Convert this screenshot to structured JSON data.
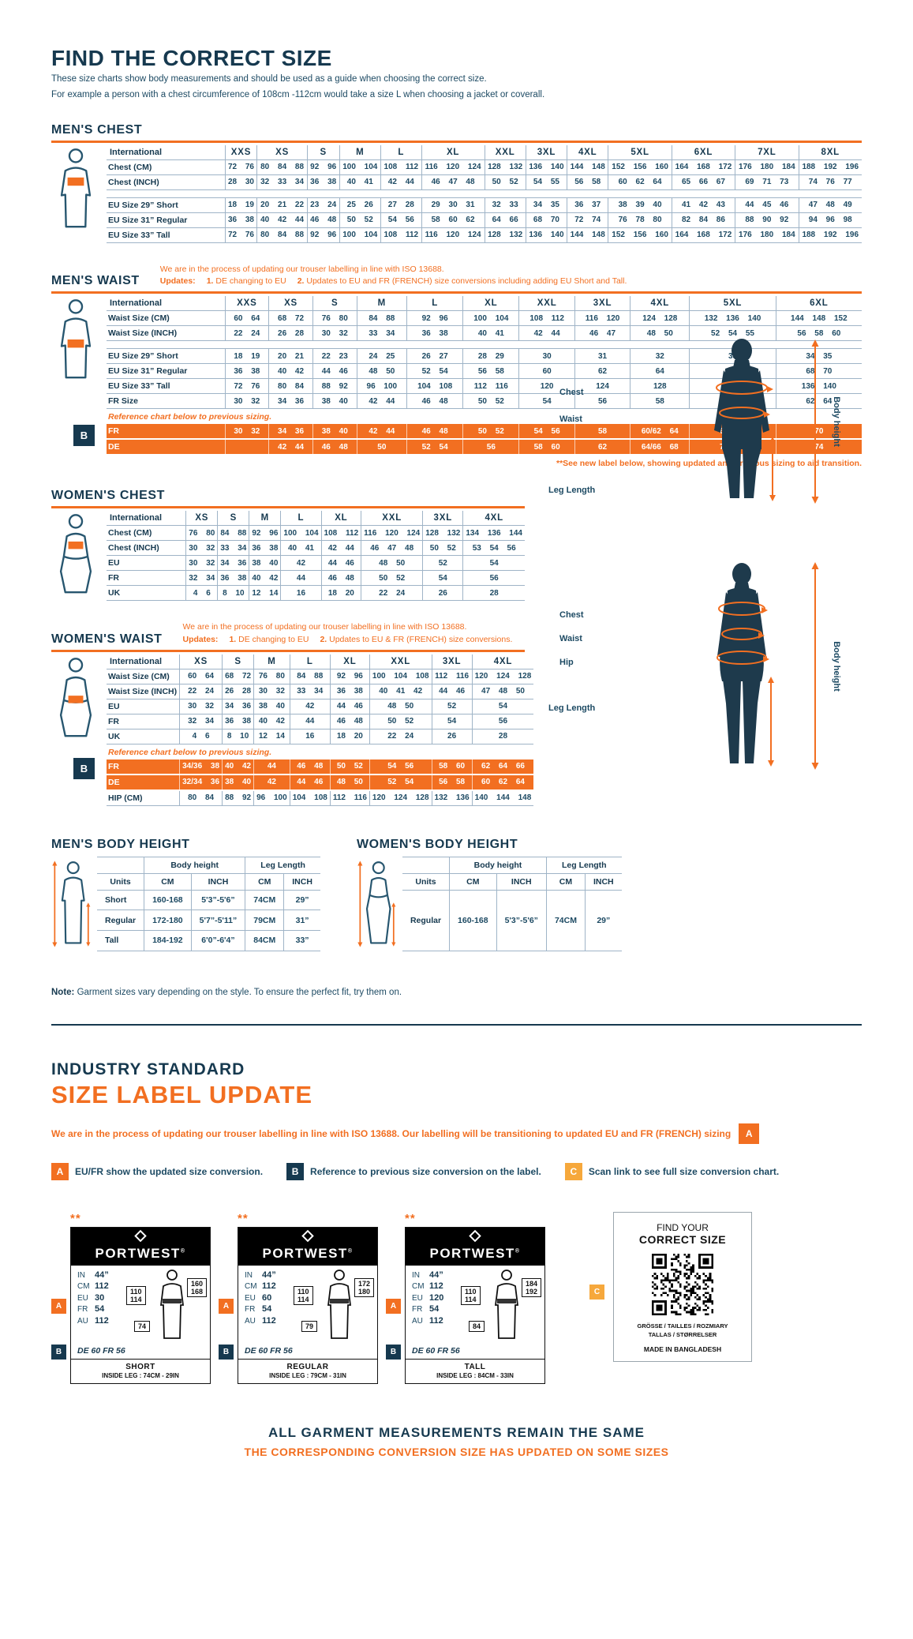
{
  "header": {
    "title": "FIND THE CORRECT SIZE",
    "sub1": "These size charts show body measurements and should be used as a guide when choosing the correct size.",
    "sub2": "For example a person with a chest circumference of 108cm -112cm would take a size L when choosing a jacket or coverall."
  },
  "colors": {
    "navy": "#16394F",
    "ink": "#1D4A63",
    "orange": "#F26F21",
    "amber": "#F6A83C",
    "table_line": "#9FB4C7"
  },
  "notes": {
    "updates_label": "Updates:",
    "mens_waist": {
      "line1": "We are in the process of updating our trouser labelling in line with ISO 13688.",
      "n1": "1.",
      "u1": "DE changing to EU",
      "n2": "2.",
      "u2": "Updates to EU and FR (FRENCH) size conversions including adding EU Short and Tall.",
      "footnote": "**See new label below, showing updated and previous sizing to aid transition."
    },
    "womens_waist": {
      "line1": "We are in the process of updating our trouser labelling in line with ISO 13688.",
      "n1": "1.",
      "u1": "DE changing to EU",
      "n2": "2.",
      "u2": "Updates to EU & FR (FRENCH) size conversions."
    },
    "garment_note_label": "Note:",
    "garment_note": " Garment sizes vary depending on the style. To ensure the perfect fit, try them on."
  },
  "tables": {
    "mens_chest": {
      "title": "MEN'S CHEST",
      "header": [
        "International",
        "XXS",
        "XS",
        "S",
        "M",
        "L",
        "XL",
        "XXL",
        "3XL",
        "4XL",
        "5XL",
        "6XL",
        "7XL",
        "8XL"
      ],
      "rows": [
        {
          "type": "data",
          "label": "Chest (CM)",
          "cells": [
            "72 76",
            "80 84 88",
            "92 96",
            "100 104",
            "108 112",
            "116 120 124",
            "128 132",
            "136 140",
            "144 148",
            "152 156 160",
            "164 168 172",
            "176 180 184",
            "188 192 196"
          ]
        },
        {
          "type": "data",
          "label": "Chest (INCH)",
          "cells": [
            "28 30",
            "32 33 34",
            "36 38",
            "40 41",
            "42 44",
            "46 47 48",
            "50 52",
            "54 55",
            "56 58",
            "60 62 64",
            "65 66 67",
            "69 71 73",
            "74 76 77"
          ]
        },
        {
          "type": "gap"
        },
        {
          "type": "data",
          "label": "EU Size 29” Short",
          "cells": [
            "18 19",
            "20 21 22",
            "23 24",
            "25 26",
            "27 28",
            "29 30 31",
            "32 33",
            "34 35",
            "36 37",
            "38 39 40",
            "41 42 43",
            "44 45 46",
            "47 48 49"
          ]
        },
        {
          "type": "data",
          "label": "EU Size 31” Regular",
          "cells": [
            "36 38",
            "40 42 44",
            "46 48",
            "50 52",
            "54 56",
            "58 60 62",
            "64 66",
            "68 70",
            "72 74",
            "76 78 80",
            "82 84 86",
            "88 90 92",
            "94 96 98"
          ]
        },
        {
          "type": "data",
          "label": "EU Size 33” Tall",
          "cells": [
            "72 76",
            "80 84 88",
            "92 96",
            "100 104",
            "108 112",
            "116 120 124",
            "128 132",
            "136 140",
            "144 148",
            "152 156 160",
            "164 168 172",
            "176 180 184",
            "188 192 196"
          ]
        }
      ]
    },
    "mens_waist": {
      "title": "MEN'S WAIST",
      "header": [
        "International",
        "XXS",
        "XS",
        "S",
        "M",
        "L",
        "XL",
        "XXL",
        "3XL",
        "4XL",
        "5XL",
        "6XL"
      ],
      "rows": [
        {
          "type": "data",
          "label": "Waist Size (CM)",
          "cells": [
            "60 64",
            "68 72",
            "76 80",
            "84 88",
            "92 96",
            "100 104",
            "108 112",
            "116 120",
            "124 128",
            "132 136 140",
            "144 148 152"
          ]
        },
        {
          "type": "data",
          "label": "Waist Size (INCH)",
          "cells": [
            "22 24",
            "26 28",
            "30 32",
            "33 34",
            "36 38",
            "40 41",
            "42 44",
            "46 47",
            "48 50",
            "52 54 55",
            "56 58 60"
          ]
        },
        {
          "type": "gap"
        },
        {
          "type": "data",
          "label": "EU Size 29” Short",
          "cells": [
            "18 19",
            "20 21",
            "22 23",
            "24 25",
            "26 27",
            "28 29",
            "30",
            "31",
            "32",
            "33",
            "34 35"
          ]
        },
        {
          "type": "data",
          "label": "EU Size 31” Regular",
          "cells": [
            "36 38",
            "40 42",
            "44 46",
            "48 50",
            "52 54",
            "56 58",
            "60",
            "62",
            "64",
            "66",
            "68 70"
          ]
        },
        {
          "type": "data",
          "label": "EU Size 33” Tall",
          "cells": [
            "72 76",
            "80 84",
            "88 92",
            "96 100",
            "104 108",
            "112 116",
            "120",
            "124",
            "128",
            "132",
            "136 140"
          ]
        },
        {
          "type": "data",
          "label": "FR Size",
          "cells": [
            "30 32",
            "34 36",
            "38 40",
            "42 44",
            "46 48",
            "50 52",
            "54",
            "56",
            "58",
            "60",
            "62 64"
          ]
        },
        {
          "type": "note",
          "text": "Reference chart below to previous sizing."
        },
        {
          "type": "orange",
          "label": "FR",
          "cells": [
            "30 32",
            "34 36",
            "38 40",
            "42 44",
            "46 48",
            "50 52",
            "54 56",
            "58",
            "60/62 64",
            "66 68",
            "70"
          ]
        },
        {
          "type": "orange",
          "label": "DE",
          "cells": [
            "",
            "42 44",
            "46 48",
            "50",
            "52 54",
            "56",
            "58 60",
            "62",
            "64/66 68",
            "70 72",
            "74"
          ]
        }
      ]
    },
    "womens_chest": {
      "title": "WOMEN'S CHEST",
      "header": [
        "International",
        "XS",
        "S",
        "M",
        "L",
        "XL",
        "XXL",
        "3XL",
        "4XL"
      ],
      "rows": [
        {
          "type": "data",
          "label": "Chest (CM)",
          "cells": [
            "76 80",
            "84 88",
            "92 96",
            "100 104",
            "108 112",
            "116 120 124",
            "128 132",
            "134 136 144"
          ]
        },
        {
          "type": "data",
          "label": "Chest (INCH)",
          "cells": [
            "30 32",
            "33 34",
            "36 38",
            "40 41",
            "42 44",
            "46 47 48",
            "50 52",
            "53 54 56"
          ]
        },
        {
          "type": "data",
          "label": "EU",
          "cells": [
            "30 32",
            "34 36",
            "38 40",
            "42",
            "44 46",
            "48 50",
            "52",
            "54"
          ]
        },
        {
          "type": "data",
          "label": "FR",
          "cells": [
            "32 34",
            "36 38",
            "40 42",
            "44",
            "46 48",
            "50 52",
            "54",
            "56"
          ]
        },
        {
          "type": "data",
          "label": "UK",
          "cells": [
            "4 6",
            "8 10",
            "12 14",
            "16",
            "18 20",
            "22 24",
            "26",
            "28"
          ]
        }
      ]
    },
    "womens_waist": {
      "title": "WOMEN'S WAIST",
      "header": [
        "International",
        "XS",
        "S",
        "M",
        "L",
        "XL",
        "XXL",
        "3XL",
        "4XL"
      ],
      "rows": [
        {
          "type": "data",
          "label": "Waist Size (CM)",
          "cells": [
            "60 64",
            "68 72",
            "76 80",
            "84 88",
            "92 96",
            "100 104 108",
            "112 116",
            "120 124 128"
          ]
        },
        {
          "type": "data",
          "label": "Waist Size (INCH)",
          "cells": [
            "22 24",
            "26 28",
            "30 32",
            "33 34",
            "36 38",
            "40 41 42",
            "44 46",
            "47 48 50"
          ]
        },
        {
          "type": "data",
          "label": "EU",
          "cells": [
            "30 32",
            "34 36",
            "38 40",
            "42",
            "44 46",
            "48 50",
            "52",
            "54"
          ]
        },
        {
          "type": "data",
          "label": "FR",
          "cells": [
            "32 34",
            "36 38",
            "40 42",
            "44",
            "46 48",
            "50 52",
            "54",
            "56"
          ]
        },
        {
          "type": "data",
          "label": "UK",
          "cells": [
            "4 6",
            "8 10",
            "12 14",
            "16",
            "18 20",
            "22 24",
            "26",
            "28"
          ]
        },
        {
          "type": "note",
          "text": "Reference chart below to previous sizing."
        },
        {
          "type": "orange",
          "label": "FR",
          "cells": [
            "34/36 38",
            "40 42",
            "44",
            "46 48",
            "50 52",
            "54 56",
            "58 60",
            "62 64 66"
          ]
        },
        {
          "type": "orange",
          "label": "DE",
          "cells": [
            "32/34 36",
            "38 40",
            "42",
            "44 46",
            "48 50",
            "52 54",
            "56 58",
            "60 62 64"
          ]
        },
        {
          "type": "data",
          "label": "HIP (CM)",
          "cells": [
            "80 84",
            "88 92",
            "96 100",
            "104 108",
            "112 116",
            "120 124 128",
            "132 136",
            "140 144 148"
          ]
        }
      ]
    }
  },
  "body_height": {
    "mens": {
      "title": "MEN'S BODY HEIGHT",
      "group": [
        "",
        "Body height",
        "Leg Length"
      ],
      "units_row": [
        "Units",
        "CM",
        "INCH",
        "CM",
        "INCH"
      ],
      "rows": [
        [
          "Short",
          "160-168",
          "5'3”-5'6”",
          "74CM",
          "29”"
        ],
        [
          "Regular",
          "172-180",
          "5'7”-5'11”",
          "79CM",
          "31”"
        ],
        [
          "Tall",
          "184-192",
          "6'0”-6'4”",
          "84CM",
          "33”"
        ]
      ]
    },
    "womens": {
      "title": "WOMEN'S BODY HEIGHT",
      "group": [
        "",
        "Body height",
        "Leg Length"
      ],
      "units_row": [
        "Units",
        "CM",
        "INCH",
        "CM",
        "INCH"
      ],
      "rows": [
        [
          "Regular",
          "160-168",
          "5'3”-5'6”",
          "74CM",
          "29”"
        ]
      ]
    }
  },
  "figures": {
    "male": {
      "labels": [
        "Chest",
        "Waist",
        "Leg Length"
      ],
      "body_height": "Body height"
    },
    "female": {
      "labels": [
        "Chest",
        "Waist",
        "Hip",
        "Leg Length"
      ],
      "body_height": "Body height"
    }
  },
  "label_update": {
    "heading1": "INDUSTRY STANDARD",
    "heading2": "SIZE LABEL UPDATE",
    "intro": "We are in the process of updating our trouser labelling in line with ISO 13688. Our labelling will be transitioning to updated EU and FR (FRENCH) sizing",
    "intro_badge": "A",
    "legend": [
      {
        "letter": "A",
        "text": "EU/FR show the updated size conversion."
      },
      {
        "letter": "B",
        "text": "Reference to previous size conversion on the label."
      },
      {
        "letter": "C",
        "text": "Scan link to see full size conversion chart."
      }
    ],
    "brand": "PORTWEST",
    "brand_reg": "®",
    "stars": "**",
    "shared": {
      "in_label": "IN",
      "in_value": "44”",
      "cm_label": "CM",
      "cm_value": "112",
      "eu_label": "EU",
      "fr_label": "FR",
      "fr_value": "54",
      "au_label": "AU",
      "au_value": "112",
      "waist_box": "110 114",
      "previous": "DE 60 FR 56"
    },
    "cards": [
      {
        "eu_value": "30",
        "height_box": "160 168",
        "inseam_box": "74",
        "caption": "SHORT",
        "caption_sub": "INSIDE LEG : 74CM - 29IN"
      },
      {
        "eu_value": "60",
        "height_box": "172 180",
        "inseam_box": "79",
        "caption": "REGULAR",
        "caption_sub": "INSIDE LEG : 79CM - 31IN"
      },
      {
        "eu_value": "120",
        "height_box": "184 192",
        "inseam_box": "84",
        "caption": "TALL",
        "caption_sub": "INSIDE LEG : 84CM - 33IN"
      }
    ],
    "qr_card": {
      "line1": "FIND YOUR",
      "line2": "CORRECT SIZE",
      "langs1": "GRÖSSE / TAILLES / ROZMIARY",
      "langs2": "TALLAS / STØRRELSER",
      "made": "MADE IN BANGLADESH",
      "badge": "C"
    }
  },
  "footer": {
    "line1": "ALL GARMENT MEASUREMENTS REMAIN THE SAME",
    "line2": "THE CORRESPONDING CONVERSION SIZE HAS UPDATED ON SOME SIZES"
  }
}
